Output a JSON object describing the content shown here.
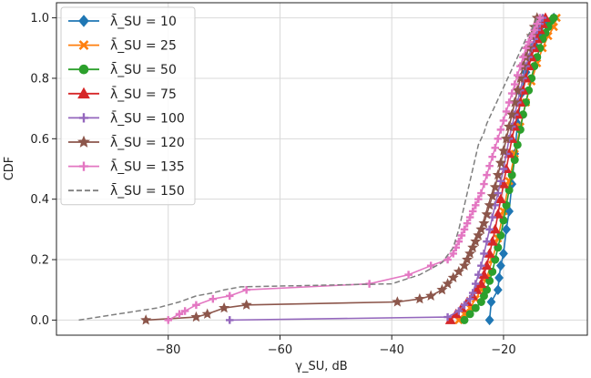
{
  "chart_data": {
    "type": "line",
    "title": "",
    "xlabel": "γ_SU, dB",
    "ylabel": "CDF",
    "xlim": [
      -100,
      -5
    ],
    "ylim": [
      -0.05,
      1.05
    ],
    "xticks": [
      -80,
      -60,
      -40,
      -20
    ],
    "xtick_labels": [
      "−80",
      "−60",
      "−40",
      "−20"
    ],
    "yticks": [
      0.0,
      0.2,
      0.4,
      0.6,
      0.8,
      1.0
    ],
    "ytick_labels": [
      "0.0",
      "0.2",
      "0.4",
      "0.6",
      "0.8",
      "1.0"
    ],
    "grid": true,
    "legend_position": "top-left",
    "series": [
      {
        "name": "λ̄_SU = 10",
        "color": "#1f77b4",
        "marker": "diamond",
        "dash": false,
        "x": [
          -22.5,
          -22.2,
          -21.0,
          -20.8,
          -20.5,
          -20.0,
          -19.5,
          -19.0,
          -18.5,
          -18.0,
          -17.5,
          -16.8,
          -16.0,
          -15.2,
          -14.5,
          -13.5,
          -12.5,
          -11.0
        ],
        "y": [
          0.0,
          0.06,
          0.1,
          0.14,
          0.18,
          0.22,
          0.3,
          0.36,
          0.45,
          0.55,
          0.65,
          0.75,
          0.82,
          0.87,
          0.91,
          0.95,
          0.98,
          1.0
        ]
      },
      {
        "name": "λ̄_SU = 25",
        "color": "#ff7f0e",
        "marker": "x",
        "dash": false,
        "x": [
          -28.0,
          -27.0,
          -26.0,
          -25.0,
          -24.0,
          -23.0,
          -22.0,
          -21.0,
          -20.0,
          -19.0,
          -18.0,
          -17.0,
          -16.0,
          -15.0,
          -14.0,
          -13.0,
          -12.0,
          -11.0,
          -10.5
        ],
        "y": [
          0.0,
          0.02,
          0.04,
          0.07,
          0.1,
          0.14,
          0.2,
          0.27,
          0.36,
          0.46,
          0.55,
          0.64,
          0.72,
          0.79,
          0.85,
          0.9,
          0.94,
          0.97,
          1.0
        ]
      },
      {
        "name": "λ̄_SU = 50",
        "color": "#2ca02c",
        "marker": "circle",
        "dash": false,
        "x": [
          -27.0,
          -26.0,
          -25.0,
          -24.0,
          -23.5,
          -23.0,
          -22.5,
          -22.0,
          -21.5,
          -21.0,
          -20.5,
          -20.0,
          -19.5,
          -19.0,
          -18.5,
          -18.0,
          -17.5,
          -17.0,
          -16.5,
          -16.0,
          -15.5,
          -15.0,
          -14.5,
          -14.0,
          -13.5,
          -13.0,
          -12.5,
          -12.0,
          -11.5,
          -11.0
        ],
        "y": [
          0.0,
          0.02,
          0.04,
          0.06,
          0.08,
          0.1,
          0.13,
          0.16,
          0.2,
          0.24,
          0.28,
          0.33,
          0.38,
          0.43,
          0.48,
          0.53,
          0.58,
          0.63,
          0.68,
          0.72,
          0.76,
          0.8,
          0.84,
          0.87,
          0.9,
          0.93,
          0.95,
          0.97,
          0.99,
          1.0
        ]
      },
      {
        "name": "λ̄_SU = 75",
        "color": "#d62728",
        "marker": "triangle",
        "dash": false,
        "x": [
          -29.5,
          -28.5,
          -27.5,
          -26.5,
          -25.5,
          -24.8,
          -24.0,
          -23.5,
          -23.0,
          -22.5,
          -22.0,
          -21.5,
          -21.0,
          -20.5,
          -20.0,
          -19.5,
          -19.0,
          -18.5,
          -18.0,
          -17.5,
          -17.0,
          -16.5,
          -16.0,
          -15.5,
          -15.0,
          -14.5,
          -14.0,
          -13.5,
          -13.0,
          -12.5
        ],
        "y": [
          0.0,
          0.02,
          0.04,
          0.06,
          0.08,
          0.1,
          0.12,
          0.15,
          0.18,
          0.22,
          0.26,
          0.3,
          0.35,
          0.4,
          0.45,
          0.5,
          0.55,
          0.6,
          0.64,
          0.68,
          0.72,
          0.76,
          0.8,
          0.84,
          0.87,
          0.9,
          0.93,
          0.96,
          0.98,
          1.0
        ]
      },
      {
        "name": "λ̄_SU = 100",
        "color": "#9467bd",
        "marker": "plus",
        "dash": false,
        "x": [
          -69.0,
          -30.0,
          -28.0,
          -27.0,
          -26.0,
          -25.5,
          -25.0,
          -24.5,
          -24.0,
          -23.5,
          -23.0,
          -22.5,
          -22.0,
          -21.5,
          -21.0,
          -20.5,
          -20.0,
          -19.5,
          -19.0,
          -18.5,
          -18.0,
          -17.5,
          -17.0,
          -16.5,
          -16.0,
          -15.5,
          -15.0,
          -14.5,
          -14.0,
          -13.5,
          -13.0
        ],
        "y": [
          0.0,
          0.01,
          0.03,
          0.05,
          0.07,
          0.09,
          0.12,
          0.15,
          0.18,
          0.22,
          0.26,
          0.3,
          0.34,
          0.38,
          0.42,
          0.46,
          0.5,
          0.55,
          0.6,
          0.64,
          0.68,
          0.72,
          0.76,
          0.8,
          0.84,
          0.87,
          0.9,
          0.93,
          0.96,
          0.98,
          1.0
        ]
      },
      {
        "name": "λ̄_SU = 120",
        "color": "#8c564b",
        "marker": "star",
        "dash": false,
        "x": [
          -84.0,
          -75.0,
          -73.0,
          -70.0,
          -66.0,
          -39.0,
          -35.0,
          -33.0,
          -31.0,
          -30.0,
          -29.0,
          -28.0,
          -27.0,
          -26.5,
          -26.0,
          -25.5,
          -25.0,
          -24.5,
          -24.0,
          -23.5,
          -23.0,
          -22.5,
          -22.0,
          -21.5,
          -21.0,
          -20.5,
          -20.0,
          -19.5,
          -19.0,
          -18.5,
          -18.0,
          -17.5,
          -17.0,
          -16.5,
          -16.0,
          -15.5,
          -15.0,
          -14.5,
          -14.0
        ],
        "y": [
          0.0,
          0.01,
          0.02,
          0.04,
          0.05,
          0.06,
          0.07,
          0.08,
          0.1,
          0.12,
          0.14,
          0.16,
          0.18,
          0.2,
          0.22,
          0.24,
          0.26,
          0.28,
          0.3,
          0.32,
          0.35,
          0.38,
          0.41,
          0.44,
          0.48,
          0.52,
          0.56,
          0.6,
          0.64,
          0.68,
          0.72,
          0.76,
          0.8,
          0.84,
          0.87,
          0.9,
          0.94,
          0.97,
          1.0
        ]
      },
      {
        "name": "λ̄_SU = 135",
        "color": "#e377c2",
        "marker": "plus",
        "dash": false,
        "x": [
          -80.0,
          -78.0,
          -77.0,
          -75.0,
          -72.0,
          -69.0,
          -66.0,
          -44.0,
          -37.0,
          -33.0,
          -30.0,
          -29.0,
          -28.5,
          -28.0,
          -27.5,
          -27.0,
          -26.5,
          -26.0,
          -25.5,
          -25.0,
          -24.5,
          -24.0,
          -23.5,
          -23.0,
          -22.5,
          -22.0,
          -21.5,
          -21.0,
          -20.5,
          -20.0,
          -19.5,
          -19.0,
          -18.5,
          -18.0,
          -17.5,
          -17.0,
          -16.5,
          -16.0,
          -15.5,
          -15.0,
          -14.5,
          -14.0,
          -13.5
        ],
        "y": [
          0.0,
          0.02,
          0.03,
          0.05,
          0.07,
          0.08,
          0.1,
          0.12,
          0.15,
          0.18,
          0.2,
          0.22,
          0.24,
          0.26,
          0.28,
          0.3,
          0.32,
          0.34,
          0.36,
          0.38,
          0.4,
          0.42,
          0.45,
          0.48,
          0.51,
          0.54,
          0.57,
          0.6,
          0.63,
          0.66,
          0.69,
          0.72,
          0.75,
          0.78,
          0.81,
          0.84,
          0.87,
          0.9,
          0.92,
          0.94,
          0.96,
          0.98,
          1.0
        ]
      },
      {
        "name": "λ̄_SU = 150",
        "color": "#7f7f7f",
        "marker": "none",
        "dash": true,
        "x": [
          -96.0,
          -82.0,
          -78.0,
          -75.0,
          -72.0,
          -70.0,
          -67.0,
          -40.0,
          -35.0,
          -31.0,
          -29.0,
          -28.0,
          -27.0,
          -26.0,
          -25.0,
          -24.5,
          -24.0,
          -23.5,
          -23.0,
          -22.0,
          -21.0,
          -20.0,
          -19.0,
          -18.0,
          -17.0,
          -16.0,
          -15.0,
          -14.0
        ],
        "y": [
          0.0,
          0.04,
          0.06,
          0.08,
          0.09,
          0.1,
          0.11,
          0.12,
          0.15,
          0.19,
          0.24,
          0.3,
          0.38,
          0.46,
          0.54,
          0.58,
          0.6,
          0.62,
          0.65,
          0.69,
          0.73,
          0.77,
          0.81,
          0.85,
          0.89,
          0.93,
          0.96,
          1.0
        ]
      }
    ]
  }
}
